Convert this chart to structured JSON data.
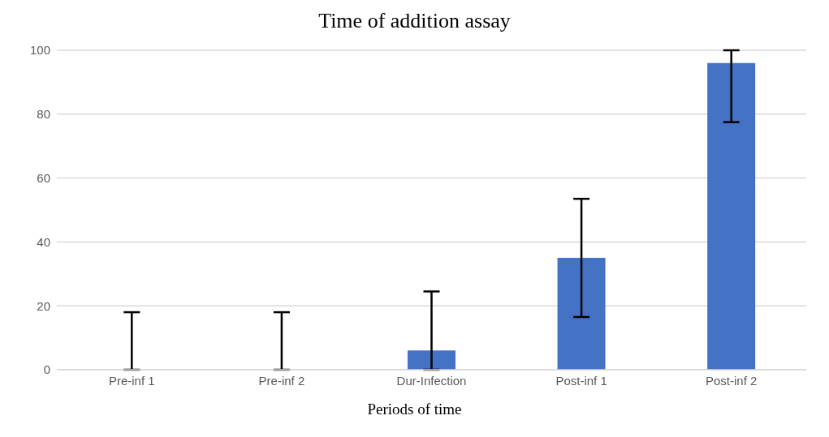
{
  "chart_data": {
    "type": "bar",
    "title": "Time of addition assay",
    "xlabel": "Periods of time",
    "categories": [
      "Pre-inf 1",
      "Pre-inf 2",
      "Dur-Infection",
      "Post-inf 1",
      "Post-inf 2"
    ],
    "values": [
      0,
      0,
      6,
      35,
      96
    ],
    "errors": [
      [
        0,
        18
      ],
      [
        0,
        18
      ],
      [
        0,
        24.5
      ],
      [
        16.5,
        53.5
      ],
      [
        77.5,
        100
      ]
    ],
    "color": "#4472c4",
    "ylim": [
      0,
      100
    ],
    "yticks": [
      0,
      20,
      40,
      60,
      80,
      100
    ],
    "grid": "y"
  }
}
